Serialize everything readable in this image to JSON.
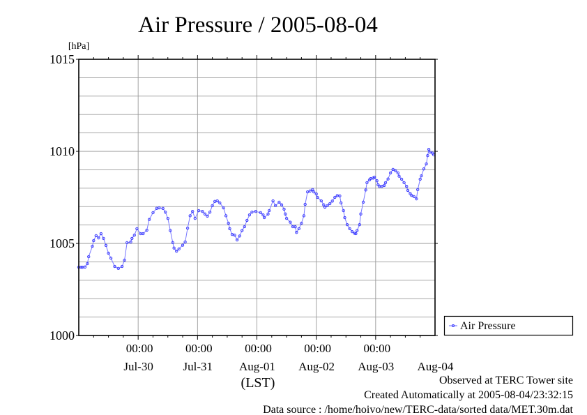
{
  "chart_data": {
    "type": "line",
    "title": "Air Pressure / 2005-08-04",
    "ylabel": "[hPa]",
    "xlabel": "(LST)",
    "ylim": [
      1000,
      1015
    ],
    "yticks": [
      {
        "value": 1000,
        "label": "1000"
      },
      {
        "value": 1005,
        "label": "1005"
      },
      {
        "value": 1010,
        "label": "1010"
      },
      {
        "value": 1015,
        "label": "1015"
      }
    ],
    "y_minor_step": 1,
    "x_unit": "hours since Jul-29 00:00 LST",
    "xlim": [
      0,
      144
    ],
    "x_minor_step": 6,
    "xticks": [
      {
        "value": 24,
        "time": "00:00",
        "date": "Jul-30"
      },
      {
        "value": 48,
        "time": "00:00",
        "date": "Jul-31"
      },
      {
        "value": 72,
        "time": "00:00",
        "date": "Aug-01"
      },
      {
        "value": 96,
        "time": "00:00",
        "date": "Aug-02"
      },
      {
        "value": 120,
        "time": "00:00",
        "date": "Aug-03"
      },
      {
        "value": 144,
        "time": "",
        "date": "Aug-04"
      }
    ],
    "grid": true,
    "legend": {
      "position": "right-bottom",
      "entries": [
        "Air Pressure"
      ]
    },
    "series": [
      {
        "name": "Air Pressure",
        "color": "#3333ff",
        "x": [
          0,
          1,
          1.5,
          2.5,
          3.5,
          4,
          5.5,
          6,
          7,
          8,
          9,
          10,
          11,
          12,
          13,
          14.5,
          16,
          17.5,
          18.5,
          19.5,
          21,
          21.5,
          22.5,
          23.5,
          25,
          26,
          27.5,
          28.5,
          30,
          31.5,
          32.5,
          34,
          35,
          36,
          37,
          38,
          38.5,
          39.5,
          40.5,
          42,
          43,
          44,
          45,
          46,
          47,
          48.5,
          50,
          51,
          52,
          53,
          54,
          55,
          56,
          57,
          58.5,
          59.5,
          60.5,
          61,
          62,
          63,
          64,
          65,
          66,
          67,
          68,
          69,
          70,
          71.5,
          73.5,
          74.5,
          75,
          76.5,
          77,
          78.5,
          79.5,
          81,
          82,
          83,
          83.5,
          84,
          85.5,
          86.5,
          87.5,
          88,
          89,
          90,
          91,
          91.5,
          92.5,
          93.5,
          94.5,
          95,
          96,
          96.5,
          98,
          99,
          99.5,
          100.5,
          101.5,
          102.5,
          103.5,
          104.5,
          105.5,
          106,
          107,
          107.5,
          108.5,
          109.5,
          110.5,
          111.5,
          112,
          112.5,
          113.5,
          114,
          115,
          116,
          116.5,
          117.5,
          118,
          119,
          119.5,
          120.5,
          121,
          121.5,
          122.5,
          123.5,
          124,
          125,
          126,
          127,
          128,
          129,
          129.5,
          130.5,
          131.5,
          132.5,
          133,
          134,
          134.5,
          135.5,
          136.5,
          137,
          138,
          138.5,
          139.5,
          140.5,
          141,
          141.5,
          142,
          143,
          143.5
        ],
        "values": [
          1003.71,
          1003.71,
          1003.71,
          1003.72,
          1003.9,
          1004.28,
          1004.85,
          1005.15,
          1005.42,
          1005.3,
          1005.53,
          1005.27,
          1004.89,
          1004.47,
          1004.2,
          1003.75,
          1003.64,
          1003.75,
          1004.09,
          1005.04,
          1005.08,
          1005.27,
          1005.45,
          1005.8,
          1005.53,
          1005.53,
          1005.72,
          1006.3,
          1006.67,
          1006.9,
          1006.93,
          1006.9,
          1006.7,
          1006.36,
          1005.7,
          1005.04,
          1004.75,
          1004.58,
          1004.7,
          1004.9,
          1005.08,
          1005.83,
          1006.5,
          1006.74,
          1006.36,
          1006.78,
          1006.74,
          1006.6,
          1006.48,
          1006.7,
          1007.05,
          1007.28,
          1007.31,
          1007.2,
          1006.93,
          1006.5,
          1006.1,
          1005.8,
          1005.49,
          1005.45,
          1005.19,
          1005.4,
          1005.7,
          1005.91,
          1006.25,
          1006.55,
          1006.7,
          1006.74,
          1006.67,
          1006.55,
          1006.4,
          1006.6,
          1006.78,
          1007.31,
          1007.05,
          1007.24,
          1007.1,
          1006.86,
          1006.6,
          1006.36,
          1006.15,
          1005.91,
          1005.9,
          1005.6,
          1005.8,
          1006.1,
          1006.5,
          1007.12,
          1007.8,
          1007.85,
          1007.92,
          1007.8,
          1007.69,
          1007.5,
          1007.31,
          1007.1,
          1006.97,
          1007.05,
          1007.16,
          1007.3,
          1007.5,
          1007.6,
          1007.58,
          1007.2,
          1006.78,
          1006.4,
          1006.02,
          1005.8,
          1005.64,
          1005.55,
          1005.53,
          1005.7,
          1006.02,
          1006.6,
          1007.24,
          1007.9,
          1008.3,
          1008.45,
          1008.52,
          1008.55,
          1008.6,
          1008.4,
          1008.18,
          1008.1,
          1008.1,
          1008.15,
          1008.3,
          1008.5,
          1008.83,
          1009.02,
          1008.95,
          1008.83,
          1008.65,
          1008.49,
          1008.3,
          1008.1,
          1007.88,
          1007.7,
          1007.61,
          1007.54,
          1007.42,
          1007.92,
          1008.49,
          1008.67,
          1009.05,
          1009.32,
          1009.77,
          1010.11,
          1009.96,
          1009.9,
          1009.81
        ]
      }
    ],
    "footer": {
      "observed": "Observed at TERC Tower site",
      "created": "Created Automatically at 2005-08-04/23:32:15",
      "source": "Data source : /home/hoivo/new/TERC-data/sorted  data/MET.30m.dat"
    }
  }
}
